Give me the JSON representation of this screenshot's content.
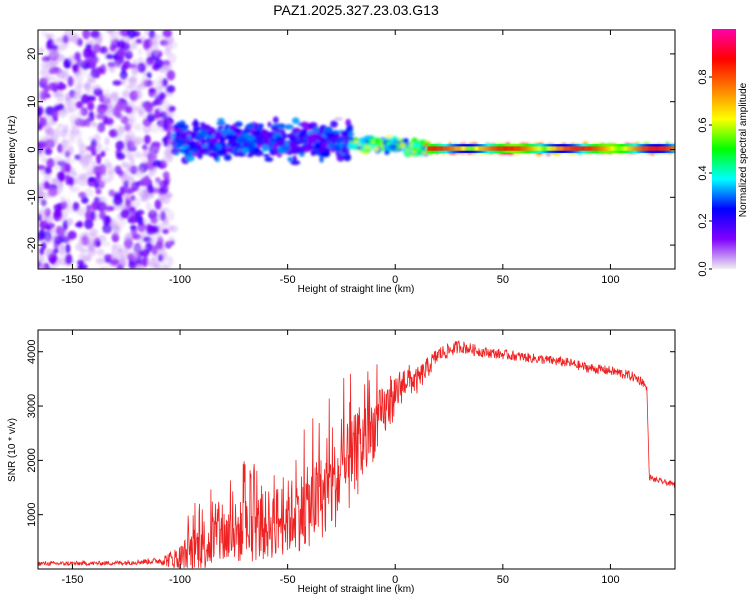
{
  "title": "PAZ1.2025.327.23.03.G13",
  "chart_data": [
    {
      "type": "heatmap",
      "name": "spectrogram",
      "xlabel": "Height of straight line (km)",
      "ylabel": "Frequency (Hz)",
      "xlim": [
        -166,
        130
      ],
      "ylim": [
        -25,
        25
      ],
      "x_ticks": [
        -150,
        -100,
        -50,
        0,
        50,
        100
      ],
      "y_ticks": [
        -20,
        -10,
        0,
        10,
        20
      ],
      "x_tick_labels": [
        "-150",
        "-100",
        "-50",
        "0",
        "50",
        "100"
      ],
      "y_tick_labels": [
        "-20",
        "-10",
        "0",
        "10",
        "20"
      ],
      "colorbar": {
        "label": "Normalized spectral amplitude",
        "range": [
          0,
          1
        ],
        "ticks": [
          0.0,
          0.2,
          0.4,
          0.6,
          0.8
        ],
        "tick_labels": [
          "0.0",
          "0.2",
          "0.4",
          "0.6",
          "0.8"
        ],
        "colors": [
          "#f0f0f0",
          "#8000ff",
          "#0000ff",
          "#00ffff",
          "#00ff00",
          "#ffff00",
          "#ff8000",
          "#ff0000",
          "#ff00aa"
        ]
      },
      "regions": [
        {
          "x_range": [
            -166,
            -103
          ],
          "freq_spread_hz": 25,
          "amplitude": 0.1,
          "description": "diffuse noise"
        },
        {
          "x_range": [
            -103,
            -20
          ],
          "freq_spread_hz": 4,
          "amplitude": 0.3
        },
        {
          "x_range": [
            -20,
            15
          ],
          "freq_spread_hz": 1.5,
          "amplitude": 0.6
        },
        {
          "x_range": [
            15,
            130
          ],
          "freq_spread_hz": 0.7,
          "amplitude": 0.9
        }
      ]
    },
    {
      "type": "line",
      "name": "snr",
      "xlabel": "Height of straight line (km)",
      "ylabel": "SNR (10 * v/v)",
      "xlim": [
        -166,
        130
      ],
      "ylim": [
        0,
        4400
      ],
      "x_ticks": [
        -150,
        -100,
        -50,
        0,
        50,
        100
      ],
      "y_ticks": [
        1000,
        2000,
        3000,
        4000
      ],
      "x_tick_labels": [
        "-150",
        "-100",
        "-50",
        "0",
        "50",
        "100"
      ],
      "y_tick_labels": [
        "1000",
        "2000",
        "3000",
        "4000"
      ],
      "color": "#ee2222",
      "series": [
        {
          "name": "SNR",
          "x": [
            -166,
            -150,
            -130,
            -110,
            -100,
            -90,
            -80,
            -70,
            -60,
            -50,
            -40,
            -30,
            -20,
            -10,
            0,
            5,
            10,
            20,
            30,
            40,
            50,
            60,
            70,
            80,
            90,
            100,
            110,
            115,
            117,
            118,
            120,
            125,
            130
          ],
          "values": [
            100,
            100,
            110,
            150,
            200,
            450,
            600,
            700,
            800,
            950,
            1150,
            1450,
            1950,
            2600,
            3200,
            3500,
            3450,
            3950,
            4100,
            4000,
            3950,
            3900,
            3850,
            3800,
            3700,
            3650,
            3550,
            3450,
            3300,
            1700,
            1650,
            1600,
            1550
          ],
          "noise_amplitude": [
            40,
            40,
            40,
            60,
            250,
            500,
            550,
            600,
            650,
            700,
            750,
            800,
            850,
            600,
            400,
            300,
            250,
            150,
            120,
            100,
            90,
            90,
            90,
            90,
            90,
            90,
            90,
            90,
            60,
            60,
            50,
            50,
            50
          ]
        }
      ]
    }
  ]
}
